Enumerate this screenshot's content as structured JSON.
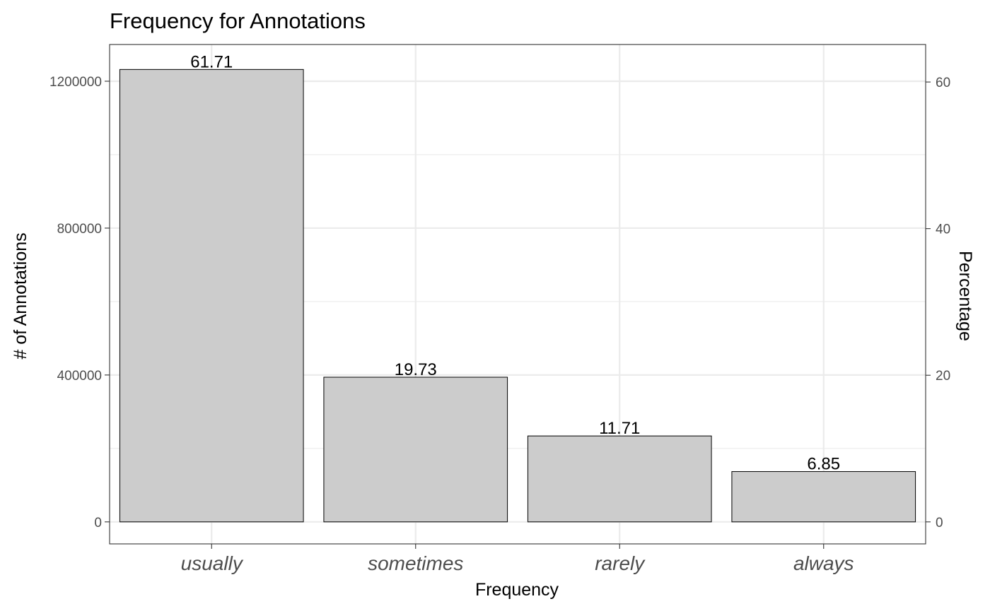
{
  "chart_data": {
    "type": "bar",
    "title": "Frequency for Annotations",
    "xlabel": "Frequency",
    "ylabel": "# of Annotations",
    "ylabel_right": "Percentage",
    "categories": [
      "usually",
      "sometimes",
      "rarely",
      "always"
    ],
    "values": [
      1232000,
      394000,
      234000,
      137000
    ],
    "value_labels": [
      "61.71",
      "19.73",
      "11.71",
      "6.85"
    ],
    "percentages": [
      61.71,
      19.73,
      11.71,
      6.85
    ],
    "ylim": [
      -60000,
      1300000
    ],
    "yticks": [
      0,
      400000,
      800000,
      1200000
    ],
    "ytick_labels": [
      "0",
      "400000",
      "800000",
      "1200000"
    ],
    "y2ticks": [
      0,
      20,
      40,
      60
    ],
    "y2tick_labels": [
      "0",
      "20",
      "40",
      "60"
    ],
    "grid": true,
    "bar_fill": "#cccccc",
    "bar_stroke": "#000000",
    "grid_color": "#ebebeb",
    "panel_border_color": "#333333"
  }
}
